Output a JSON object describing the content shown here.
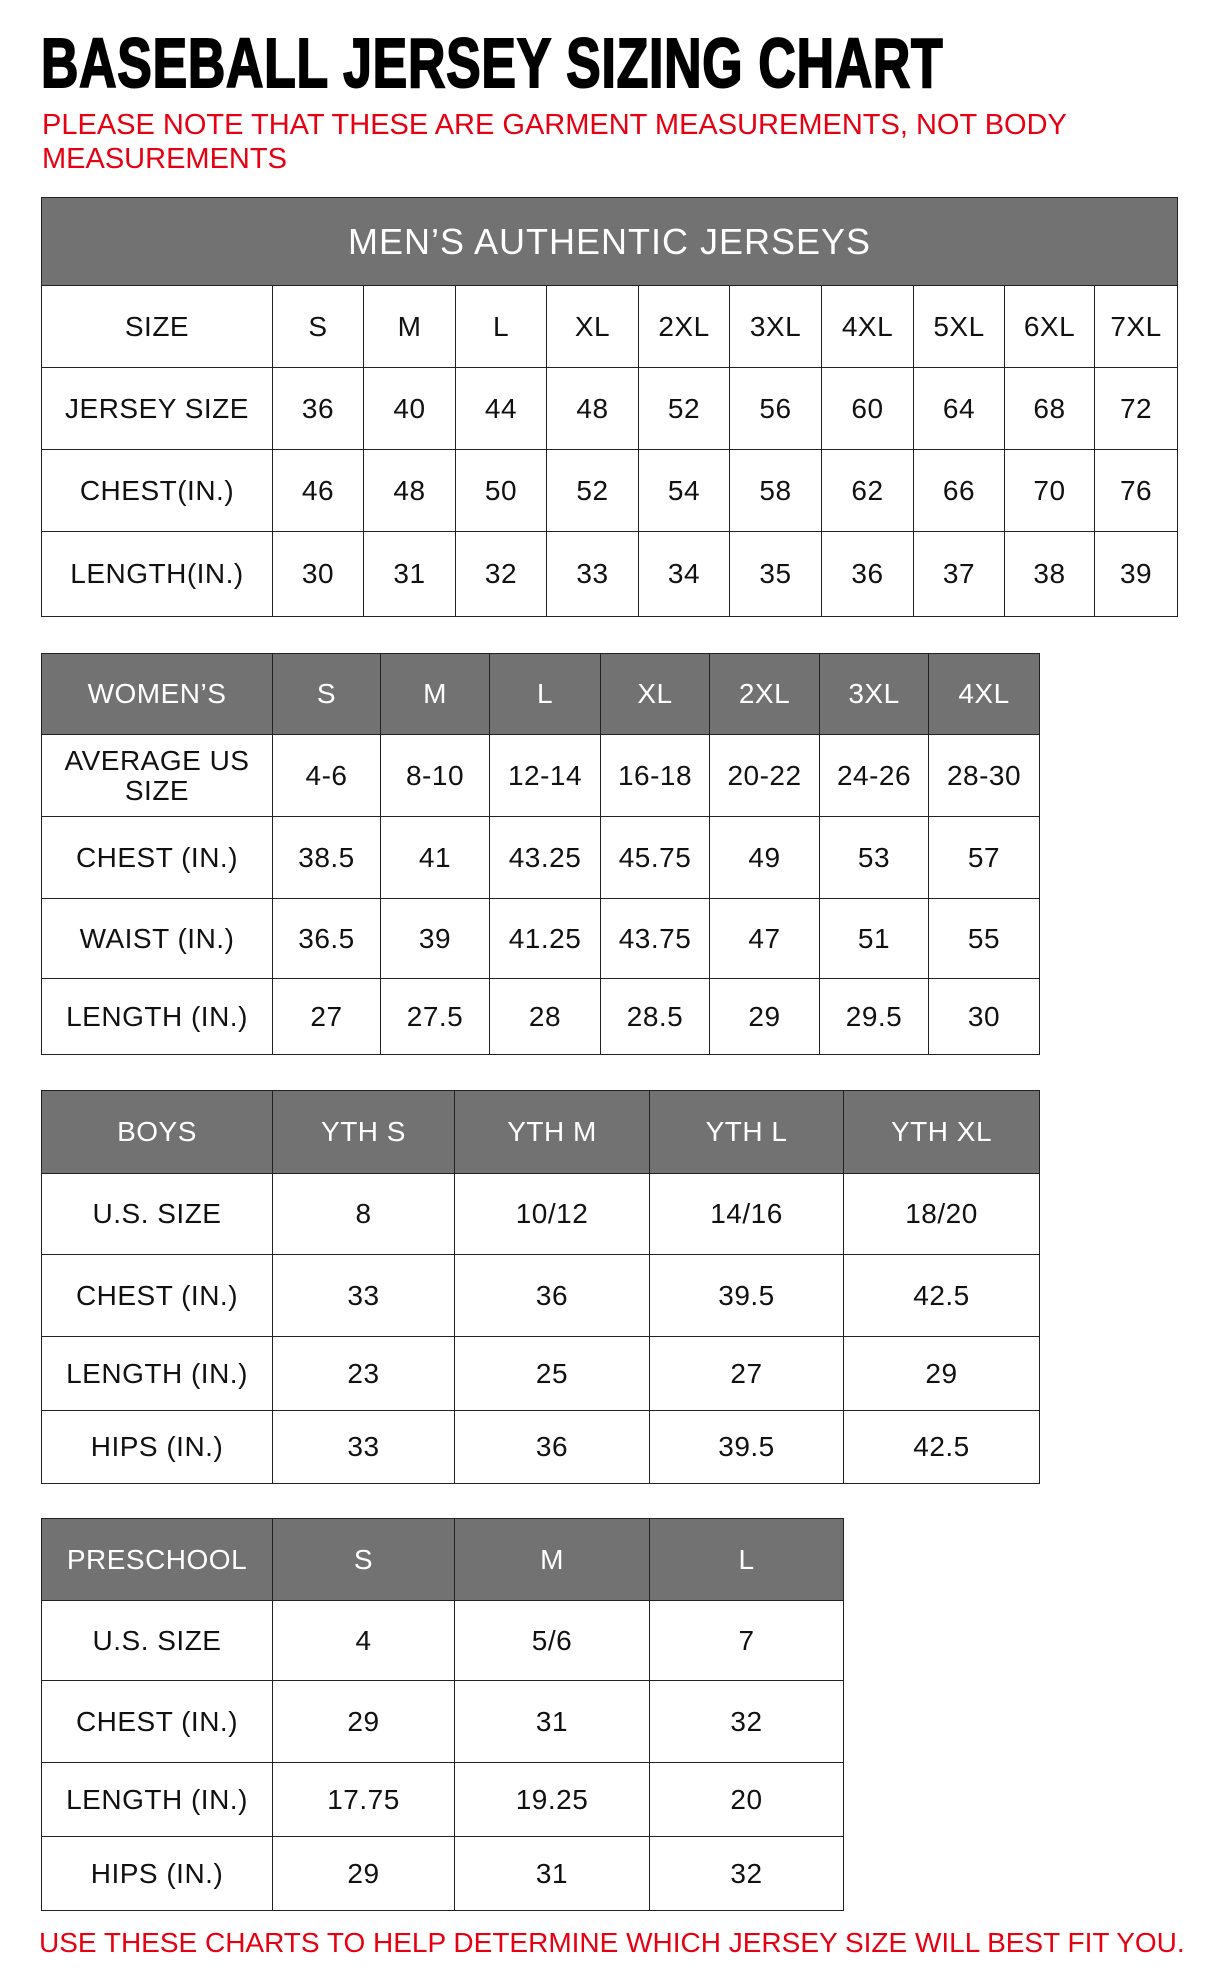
{
  "title": "BASEBALL JERSEY SIZING CHART",
  "note": "PLEASE NOTE THAT THESE ARE GARMENT MEASUREMENTS, NOT BODY MEASUREMENTS",
  "footer": "USE THESE CHARTS TO HELP DETERMINE WHICH JERSEY SIZE WILL BEST FIT YOU.",
  "colors": {
    "header_bg": "#727272",
    "note_red": "#e60012"
  },
  "tables": [
    {
      "id": "mens",
      "banner": "MEN’S AUTHENTIC JERSEYS",
      "header_gray": false,
      "header": [
        "SIZE",
        "S",
        "M",
        "L",
        "XL",
        "2XL",
        "3XL",
        "4XL",
        "5XL",
        "6XL",
        "7XL"
      ],
      "rows": [
        [
          "JERSEY SIZE",
          "36",
          "40",
          "44",
          "48",
          "52",
          "56",
          "60",
          "64",
          "68",
          "72"
        ],
        [
          "CHEST(IN.)",
          "46",
          "48",
          "50",
          "52",
          "54",
          "58",
          "62",
          "66",
          "70",
          "76"
        ],
        [
          "LENGTH(IN.)",
          "30",
          "31",
          "32",
          "33",
          "34",
          "35",
          "36",
          "37",
          "38",
          "39"
        ]
      ]
    },
    {
      "id": "womens",
      "header_gray": true,
      "header": [
        "WOMEN’S",
        "S",
        "M",
        "L",
        "XL",
        "2XL",
        "3XL",
        "4XL"
      ],
      "rows": [
        [
          "AVERAGE US SIZE",
          "4-6",
          "8-10",
          "12-14",
          "16-18",
          "20-22",
          "24-26",
          "28-30"
        ],
        [
          "CHEST (IN.)",
          "38.5",
          "41",
          "43.25",
          "45.75",
          "49",
          "53",
          "57"
        ],
        [
          "WAIST (IN.)",
          "36.5",
          "39",
          "41.25",
          "43.75",
          "47",
          "51",
          "55"
        ],
        [
          "LENGTH (IN.)",
          "27",
          "27.5",
          "28",
          "28.5",
          "29",
          "29.5",
          "30"
        ]
      ]
    },
    {
      "id": "boys",
      "header_gray": true,
      "header": [
        "BOYS",
        "YTH S",
        "YTH M",
        "YTH L",
        "YTH XL"
      ],
      "rows": [
        [
          "U.S. SIZE",
          "8",
          "10/12",
          "14/16",
          "18/20"
        ],
        [
          "CHEST (IN.)",
          "33",
          "36",
          "39.5",
          "42.5"
        ],
        [
          "LENGTH (IN.)",
          "23",
          "25",
          "27",
          "29"
        ],
        [
          "HIPS (IN.)",
          "33",
          "36",
          "39.5",
          "42.5"
        ]
      ]
    },
    {
      "id": "preschool",
      "header_gray": true,
      "header": [
        "PRESCHOOL",
        "S",
        "M",
        "L"
      ],
      "rows": [
        [
          "U.S. SIZE",
          "4",
          "5/6",
          "7"
        ],
        [
          "CHEST (IN.)",
          "29",
          "31",
          "32"
        ],
        [
          "LENGTH (IN.)",
          "17.75",
          "19.25",
          "20"
        ],
        [
          "HIPS (IN.)",
          "29",
          "31",
          "32"
        ]
      ]
    }
  ]
}
